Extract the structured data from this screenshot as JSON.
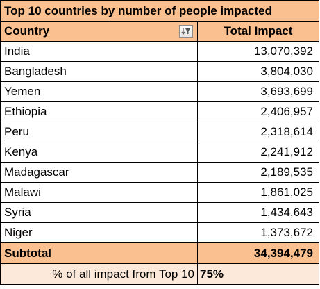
{
  "chart_data": {
    "type": "table",
    "title": "Top 10 countries by number of people impacted",
    "columns": [
      "Country",
      "Total Impact"
    ],
    "rows": [
      {
        "country": "India",
        "impact": "13,070,392"
      },
      {
        "country": "Bangladesh",
        "impact": "3,804,030"
      },
      {
        "country": "Yemen",
        "impact": "3,693,699"
      },
      {
        "country": "Ethiopia",
        "impact": "2,406,957"
      },
      {
        "country": "Peru",
        "impact": "2,318,614"
      },
      {
        "country": "Kenya",
        "impact": "2,241,912"
      },
      {
        "country": "Madagascar",
        "impact": "2,189,535"
      },
      {
        "country": "Malawi",
        "impact": "1,861,025"
      },
      {
        "country": "Syria",
        "impact": "1,434,643"
      },
      {
        "country": "Niger",
        "impact": "1,373,672"
      }
    ],
    "subtotal_label": "Subtotal",
    "subtotal_value": "34,394,479",
    "percent_label": "% of all impact from Top 10",
    "percent_value": "75%"
  },
  "colors": {
    "header_fill": "#fac090",
    "percent_fill": "#fde9d9"
  },
  "icons": {
    "filter": "filter-icon"
  }
}
